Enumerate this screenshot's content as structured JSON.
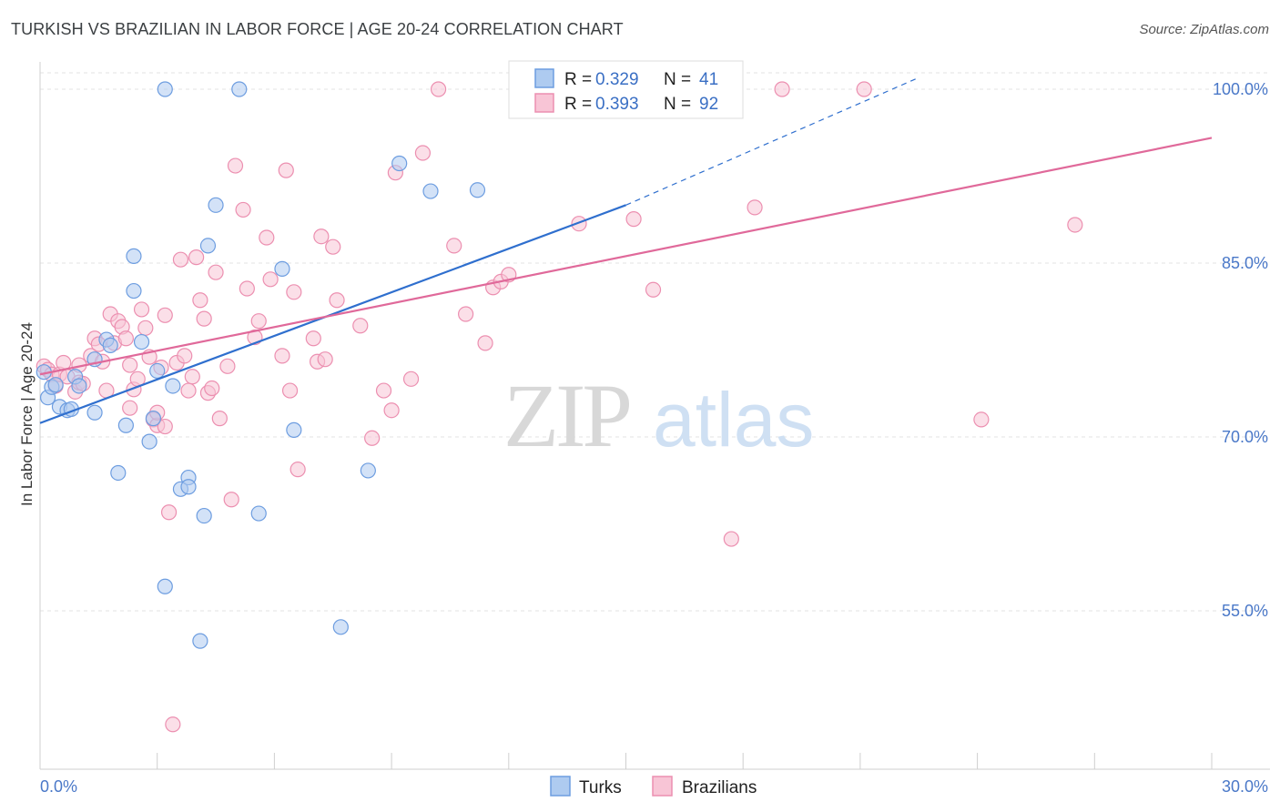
{
  "title": "TURKISH VS BRAZILIAN IN LABOR FORCE | AGE 20-24 CORRELATION CHART",
  "source": "Source: ZipAtlas.com",
  "watermark": {
    "zip": "ZIP",
    "atlas": "atlas"
  },
  "legend": {
    "r_label": "R =",
    "n_label": "N =",
    "rows": [
      {
        "r": "0.329",
        "n": "41"
      },
      {
        "r": "0.393",
        "n": "92"
      }
    ]
  },
  "bottom_legend": [
    "Turks",
    "Brazilians"
  ],
  "colors": {
    "turks_fill": "#aecbf0",
    "turks_stroke": "#6d9de0",
    "turks_line": "#2f6fce",
    "braz_fill": "#f8c5d6",
    "braz_stroke": "#ec8fb0",
    "braz_line": "#e0699a",
    "tick_text": "#4a78c8"
  },
  "chart_data": {
    "type": "scatter",
    "title": "TURKISH VS BRAZILIAN IN LABOR FORCE | AGE 20-24 CORRELATION CHART",
    "xlabel": "",
    "ylabel": "In Labor Force | Age 20-24",
    "xlim": [
      0,
      30
    ],
    "ylim": [
      40,
      102
    ],
    "x_tick_labels": [
      "0.0%",
      "30.0%"
    ],
    "y_ticks": [
      55,
      70,
      85,
      100
    ],
    "y_tick_labels": [
      "55.0%",
      "70.0%",
      "85.0%",
      "100.0%"
    ],
    "grid": true,
    "legend_position": "top-center",
    "series": [
      {
        "name": "Turks",
        "r": 0.329,
        "n": 41,
        "trend": {
          "x0": 0,
          "y0": 71.2,
          "x1": 15,
          "y1": 90.0,
          "dashed_to_x": 22.5,
          "dashed_to_y": 101.0
        },
        "points": [
          [
            0.1,
            75.6
          ],
          [
            0.2,
            73.4
          ],
          [
            0.3,
            74.3
          ],
          [
            0.4,
            74.5
          ],
          [
            0.5,
            72.6
          ],
          [
            0.7,
            72.3
          ],
          [
            0.8,
            72.4
          ],
          [
            0.9,
            75.2
          ],
          [
            1.0,
            74.4
          ],
          [
            1.4,
            72.1
          ],
          [
            1.4,
            76.7
          ],
          [
            1.7,
            78.4
          ],
          [
            1.8,
            77.9
          ],
          [
            2.0,
            66.9
          ],
          [
            2.2,
            71.0
          ],
          [
            2.4,
            82.6
          ],
          [
            2.4,
            85.6
          ],
          [
            2.6,
            78.2
          ],
          [
            2.8,
            69.6
          ],
          [
            2.9,
            71.6
          ],
          [
            3.0,
            75.7
          ],
          [
            3.2,
            57.1
          ],
          [
            3.2,
            100.0
          ],
          [
            3.4,
            74.4
          ],
          [
            3.6,
            65.5
          ],
          [
            3.8,
            66.5
          ],
          [
            3.8,
            65.7
          ],
          [
            4.1,
            52.4
          ],
          [
            4.2,
            63.2
          ],
          [
            4.3,
            86.5
          ],
          [
            4.5,
            90.0
          ],
          [
            5.1,
            100.0
          ],
          [
            5.6,
            63.4
          ],
          [
            6.2,
            84.5
          ],
          [
            6.5,
            70.6
          ],
          [
            7.7,
            53.6
          ],
          [
            8.4,
            67.1
          ],
          [
            9.2,
            93.6
          ],
          [
            10.0,
            91.2
          ],
          [
            11.2,
            91.3
          ],
          [
            12.2,
            100.0
          ]
        ]
      },
      {
        "name": "Brazilians",
        "r": 0.393,
        "n": 92,
        "trend": {
          "x0": 0,
          "y0": 75.4,
          "x1": 30,
          "y1": 95.8
        },
        "points": [
          [
            0.1,
            76.1
          ],
          [
            0.2,
            75.8
          ],
          [
            0.3,
            75.4
          ],
          [
            0.4,
            74.4
          ],
          [
            0.5,
            75.4
          ],
          [
            0.6,
            76.4
          ],
          [
            0.7,
            75.2
          ],
          [
            0.9,
            73.9
          ],
          [
            1.0,
            74.7
          ],
          [
            1.0,
            76.2
          ],
          [
            1.1,
            74.6
          ],
          [
            1.3,
            77.0
          ],
          [
            1.4,
            78.5
          ],
          [
            1.5,
            78.0
          ],
          [
            1.6,
            76.5
          ],
          [
            1.7,
            74.0
          ],
          [
            1.8,
            80.6
          ],
          [
            1.9,
            78.1
          ],
          [
            2.0,
            80.0
          ],
          [
            2.1,
            79.5
          ],
          [
            2.2,
            78.5
          ],
          [
            2.3,
            72.5
          ],
          [
            2.3,
            76.2
          ],
          [
            2.4,
            74.1
          ],
          [
            2.5,
            75.0
          ],
          [
            2.6,
            81.0
          ],
          [
            2.7,
            79.4
          ],
          [
            2.8,
            76.9
          ],
          [
            2.9,
            71.5
          ],
          [
            3.0,
            71.0
          ],
          [
            3.0,
            72.1
          ],
          [
            3.1,
            76.0
          ],
          [
            3.2,
            70.9
          ],
          [
            3.2,
            80.5
          ],
          [
            3.3,
            63.5
          ],
          [
            3.4,
            45.2
          ],
          [
            3.5,
            76.4
          ],
          [
            3.6,
            85.3
          ],
          [
            3.7,
            77.0
          ],
          [
            3.8,
            74.0
          ],
          [
            3.9,
            75.2
          ],
          [
            4.0,
            85.5
          ],
          [
            4.1,
            81.8
          ],
          [
            4.2,
            80.2
          ],
          [
            4.3,
            73.8
          ],
          [
            4.4,
            74.2
          ],
          [
            4.5,
            84.2
          ],
          [
            4.6,
            71.6
          ],
          [
            4.8,
            76.1
          ],
          [
            4.9,
            64.6
          ],
          [
            5.0,
            93.4
          ],
          [
            5.2,
            89.6
          ],
          [
            5.3,
            82.8
          ],
          [
            5.5,
            78.6
          ],
          [
            5.6,
            80.0
          ],
          [
            5.8,
            87.2
          ],
          [
            5.9,
            83.6
          ],
          [
            6.2,
            77.0
          ],
          [
            6.3,
            93.0
          ],
          [
            6.4,
            74.0
          ],
          [
            6.5,
            82.5
          ],
          [
            6.6,
            67.2
          ],
          [
            7.0,
            78.5
          ],
          [
            7.1,
            76.5
          ],
          [
            7.2,
            87.3
          ],
          [
            7.3,
            76.7
          ],
          [
            7.5,
            86.4
          ],
          [
            7.6,
            81.8
          ],
          [
            8.2,
            79.6
          ],
          [
            8.5,
            69.9
          ],
          [
            8.8,
            74.0
          ],
          [
            9.0,
            72.3
          ],
          [
            9.1,
            92.8
          ],
          [
            9.5,
            75.0
          ],
          [
            9.8,
            94.5
          ],
          [
            10.2,
            100.0
          ],
          [
            10.6,
            86.5
          ],
          [
            10.9,
            80.6
          ],
          [
            11.4,
            78.1
          ],
          [
            11.6,
            82.9
          ],
          [
            11.8,
            83.4
          ],
          [
            12.0,
            84.0
          ],
          [
            13.8,
            88.4
          ],
          [
            15.2,
            88.8
          ],
          [
            15.7,
            82.7
          ],
          [
            16.2,
            100.0
          ],
          [
            17.7,
            61.2
          ],
          [
            18.3,
            89.8
          ],
          [
            19.0,
            100.0
          ],
          [
            21.1,
            100.0
          ],
          [
            24.1,
            71.5
          ],
          [
            26.5,
            88.3
          ]
        ]
      }
    ]
  }
}
